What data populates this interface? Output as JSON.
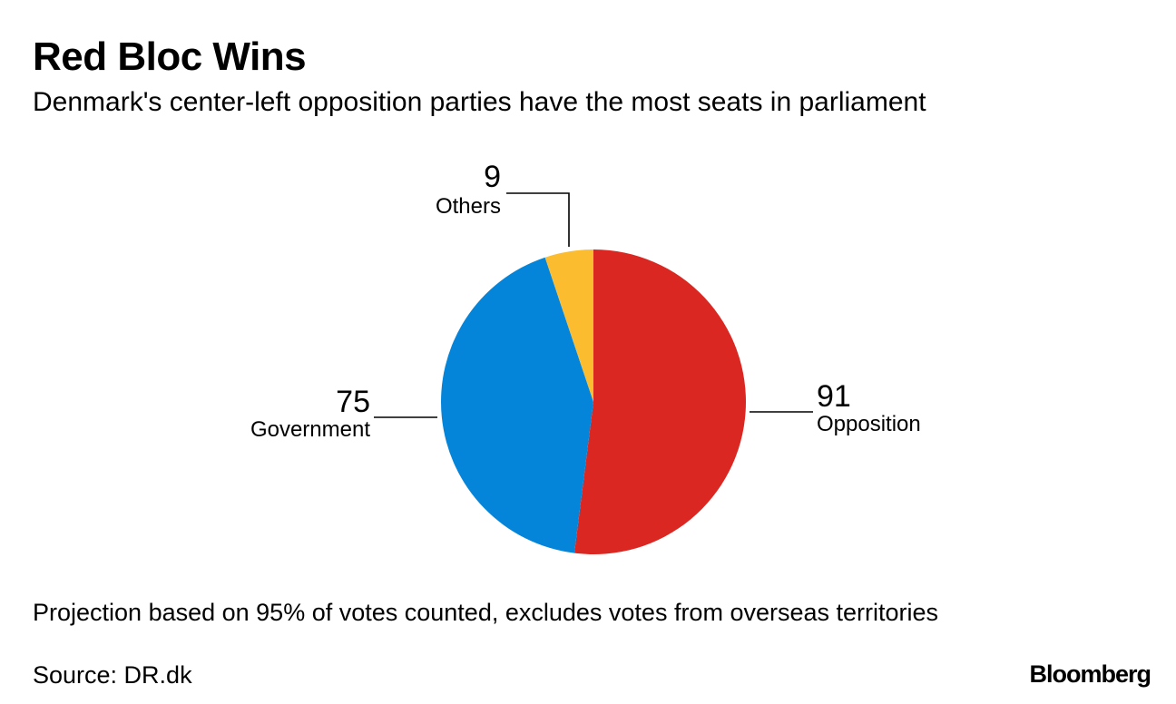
{
  "header": {
    "title": "Red Bloc Wins",
    "subtitle": "Denmark's center-left opposition parties have the most seats in parliament"
  },
  "chart_data": {
    "type": "pie",
    "title": "Red Bloc Wins",
    "subtitle": "Denmark's center-left opposition parties have the most seats in parliament",
    "slices": [
      {
        "label": "Opposition",
        "value": 91,
        "display": "91",
        "color": "#DA2721"
      },
      {
        "label": "Government",
        "value": 75,
        "display": "75",
        "color": "#0585DA"
      },
      {
        "label": "Others",
        "value": 9,
        "display": "9",
        "color": "#FBBC2F"
      }
    ],
    "start": "12 o'clock",
    "direction": "clockwise"
  },
  "footer": {
    "note": "Projection based on 95% of votes counted, excludes votes from overseas territories",
    "source": "Source: DR.dk",
    "brand": "Bloomberg"
  },
  "colors": {
    "leader_line": "#000000",
    "background": "#FFFFFF"
  }
}
